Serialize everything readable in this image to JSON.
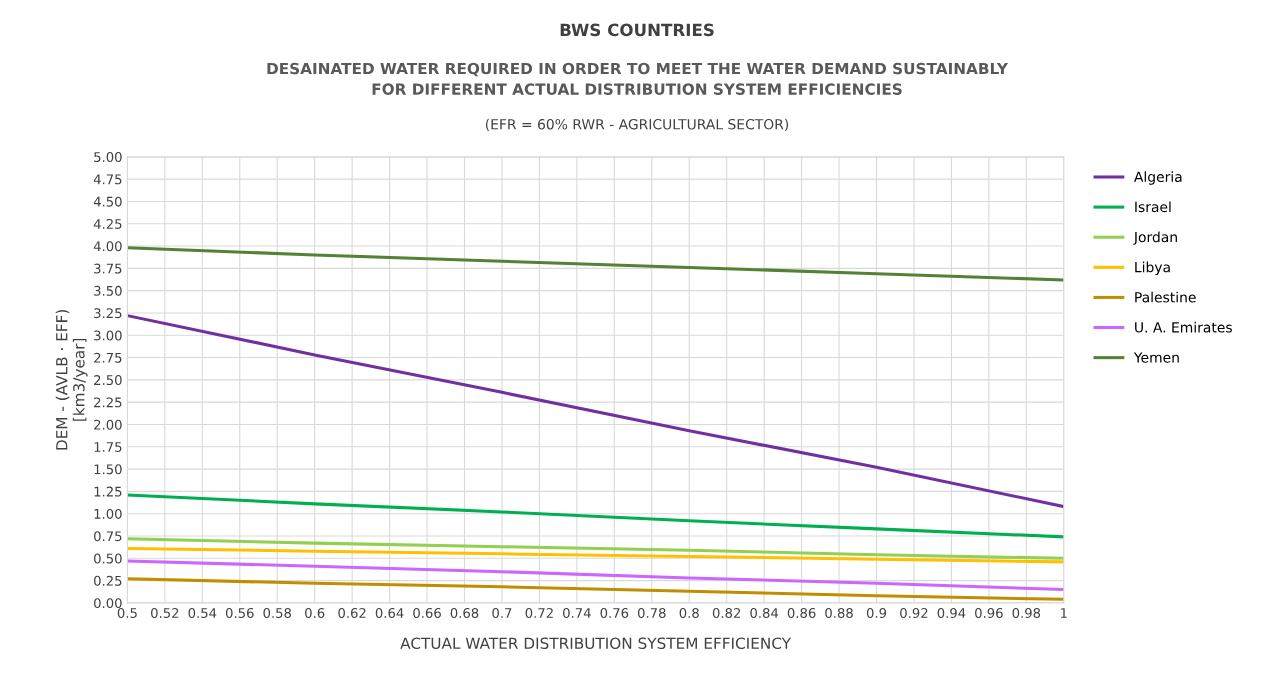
{
  "chart_data": {
    "type": "line",
    "title": "BWS COUNTRIES",
    "subtitle": "DESAINATED WATER REQUIRED IN ORDER TO MEET THE WATER DEMAND SUSTAINABLY\nFOR DIFFERENT ACTUAL DISTRIBUTION SYSTEM EFFICIENCIES",
    "annotations": [
      "(EFR = 60% RWR - AGRICULTURAL SECTOR)"
    ],
    "xlabel": "ACTUAL WATER DISTRIBUTION SYSTEM EFFICIENCY",
    "ylabel": "DEM - (AVLB · EFF)\n[km3/year]",
    "x": [
      0.5,
      0.6,
      0.7,
      0.8,
      0.9,
      1.0
    ],
    "series": [
      {
        "name": "Algeria",
        "color": "#7030a0",
        "values": [
          3.22,
          2.78,
          2.36,
          1.93,
          1.52,
          1.08
        ]
      },
      {
        "name": "Israel",
        "color": "#00b050",
        "values": [
          1.21,
          1.11,
          1.02,
          0.92,
          0.83,
          0.74
        ]
      },
      {
        "name": "Jordan",
        "color": "#92d050",
        "values": [
          0.72,
          0.67,
          0.63,
          0.59,
          0.54,
          0.5
        ]
      },
      {
        "name": "Libya",
        "color": "#ffc000",
        "values": [
          0.61,
          0.58,
          0.55,
          0.52,
          0.49,
          0.46
        ]
      },
      {
        "name": "Palestine",
        "color": "#bf8f00",
        "values": [
          0.27,
          0.22,
          0.18,
          0.13,
          0.08,
          0.04
        ]
      },
      {
        "name": "U. A. Emirates",
        "color": "#cc66ff",
        "values": [
          0.47,
          0.41,
          0.35,
          0.28,
          0.22,
          0.15
        ]
      },
      {
        "name": "Yemen",
        "color": "#548235",
        "values": [
          3.98,
          3.9,
          3.83,
          3.76,
          3.69,
          3.62
        ]
      }
    ],
    "xlim": [
      0.5,
      1
    ],
    "xticks": [
      0.5,
      0.52,
      0.54,
      0.56,
      0.58,
      0.6,
      0.62,
      0.64,
      0.66,
      0.68,
      0.7,
      0.72,
      0.74,
      0.76,
      0.78,
      0.8,
      0.82,
      0.84,
      0.86,
      0.88,
      0.9,
      0.92,
      0.94,
      0.96,
      0.98,
      1
    ],
    "ylim": [
      0,
      5
    ],
    "yticks": [
      {
        "value": 0,
        "label": "0.00"
      },
      {
        "value": 0.25,
        "label": "0.25"
      },
      {
        "value": 0.5,
        "label": "0.50"
      },
      {
        "value": 0.75,
        "label": "0.75"
      },
      {
        "value": 1,
        "label": "1.00"
      },
      {
        "value": 1.25,
        "label": "1.25"
      },
      {
        "value": 1.5,
        "label": "1.50"
      },
      {
        "value": 1.75,
        "label": "1.75"
      },
      {
        "value": 2,
        "label": "2.00"
      },
      {
        "value": 2.25,
        "label": "2.25"
      },
      {
        "value": 2.5,
        "label": "2.50"
      },
      {
        "value": 2.75,
        "label": "2.75"
      },
      {
        "value": 3,
        "label": "3.00"
      },
      {
        "value": 3.25,
        "label": "3.25"
      },
      {
        "value": 3.5,
        "label": "3.50"
      },
      {
        "value": 3.75,
        "label": "3.75"
      },
      {
        "value": 4,
        "label": "4.00"
      },
      {
        "value": 4.25,
        "label": "4.25"
      },
      {
        "value": 4.5,
        "label": "4.50"
      },
      {
        "value": 4.75,
        "label": "4.75"
      },
      {
        "value": 5,
        "label": "5.00"
      }
    ],
    "grid": true,
    "legend": "right",
    "marker": "none",
    "line_style": "solid"
  }
}
